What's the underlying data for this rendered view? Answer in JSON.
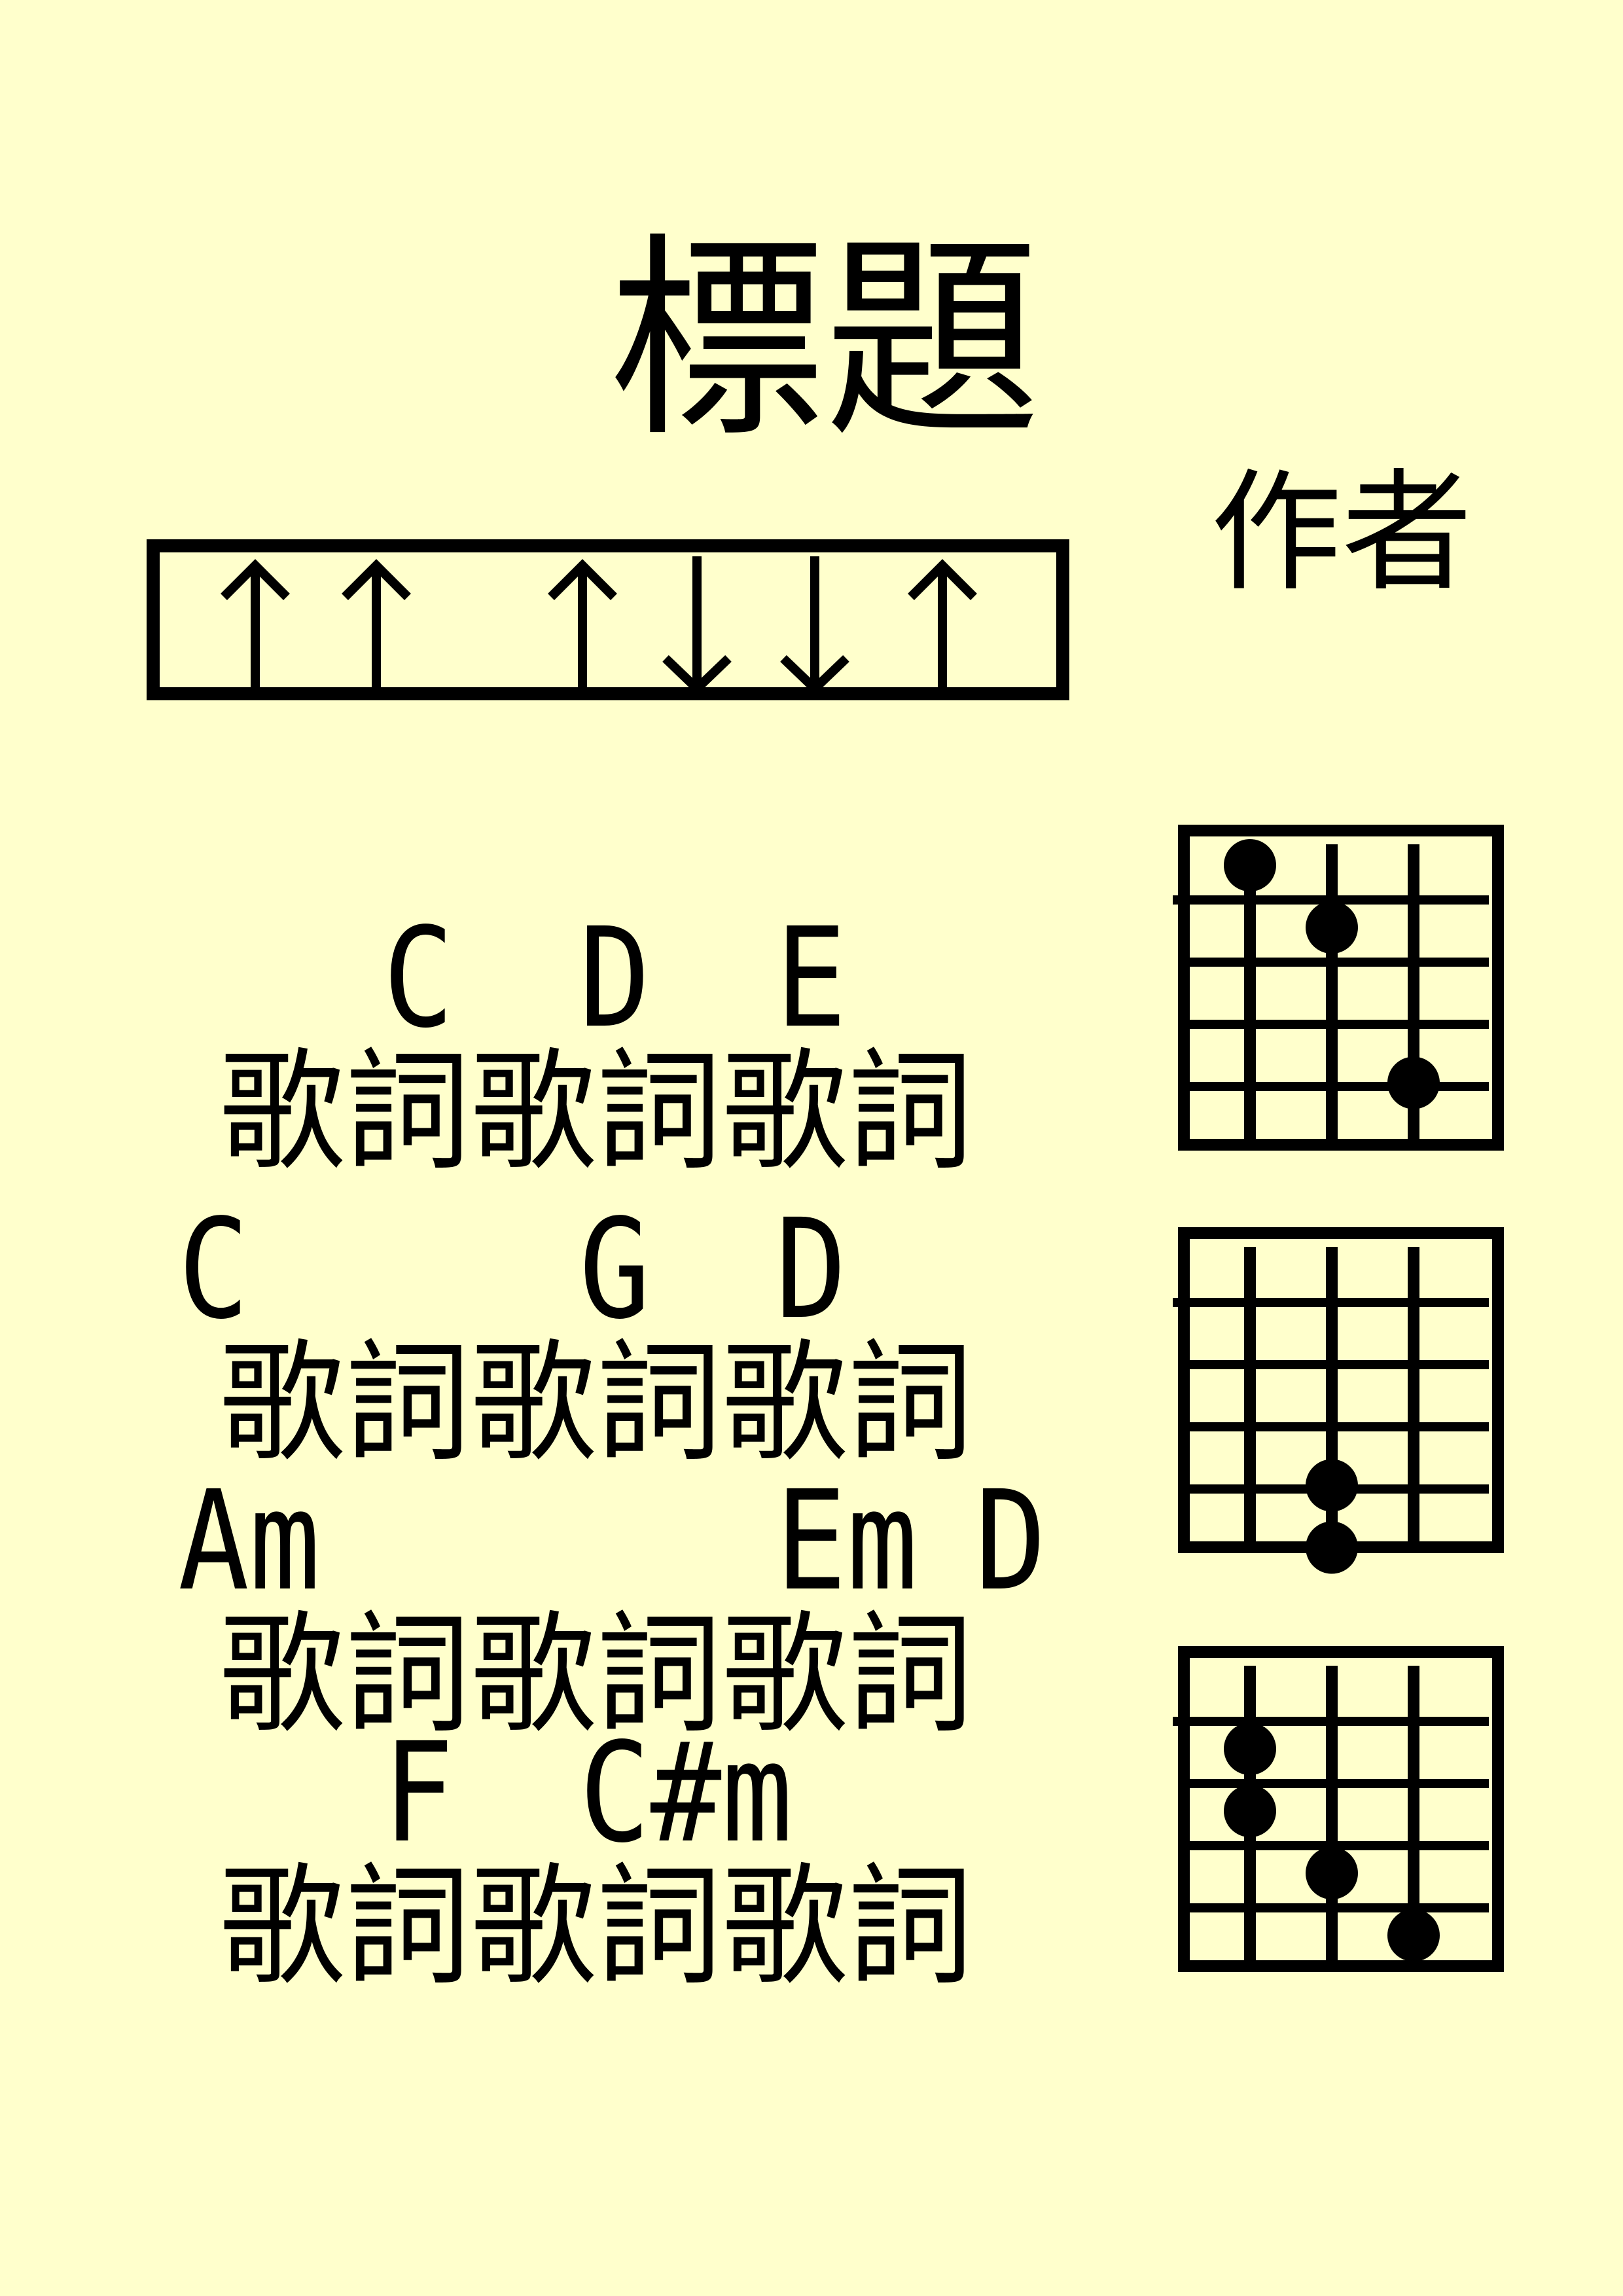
{
  "sheet": {
    "title": "標題",
    "author": "作者",
    "colors": {
      "background": "#ffffcc",
      "ink": "#000000"
    }
  },
  "strum_pattern": {
    "slots": [
      "up",
      "up",
      "",
      "up",
      "down",
      "down",
      "up"
    ]
  },
  "lines": [
    {
      "chords": [
        {
          "name": "C",
          "beat": 1
        },
        {
          "name": "D",
          "beat": 2
        },
        {
          "name": "E",
          "beat": 3
        }
      ],
      "lyric": "歌詞歌詞歌詞"
    },
    {
      "chords": [
        {
          "name": "C",
          "beat": 0
        },
        {
          "name": "G",
          "beat": 2
        },
        {
          "name": "D",
          "beat": 3
        }
      ],
      "lyric": "歌詞歌詞歌詞"
    },
    {
      "chords": [
        {
          "name": "Am",
          "beat": 0
        },
        {
          "name": "Em",
          "beat": 3
        },
        {
          "name": "D",
          "beat": 4
        }
      ],
      "lyric": "歌詞歌詞歌詞"
    },
    {
      "chords": [
        {
          "name": "F",
          "beat": 1
        },
        {
          "name": "C#m",
          "beat": 2
        }
      ],
      "lyric": "歌詞歌詞歌詞"
    }
  ],
  "chord_diagrams": [
    {
      "dots": [
        {
          "string": 1,
          "fret": 1
        },
        {
          "string": 2,
          "fret": 2
        },
        {
          "string": 3,
          "fret": 4.5
        }
      ]
    },
    {
      "dots": [
        {
          "string": 2,
          "fret": 4.5
        },
        {
          "string": 2,
          "fret": 5.5
        }
      ]
    },
    {
      "dots": [
        {
          "string": 1,
          "fret": 2
        },
        {
          "string": 1,
          "fret": 3
        },
        {
          "string": 2,
          "fret": 4
        },
        {
          "string": 3,
          "fret": 5
        }
      ]
    }
  ]
}
